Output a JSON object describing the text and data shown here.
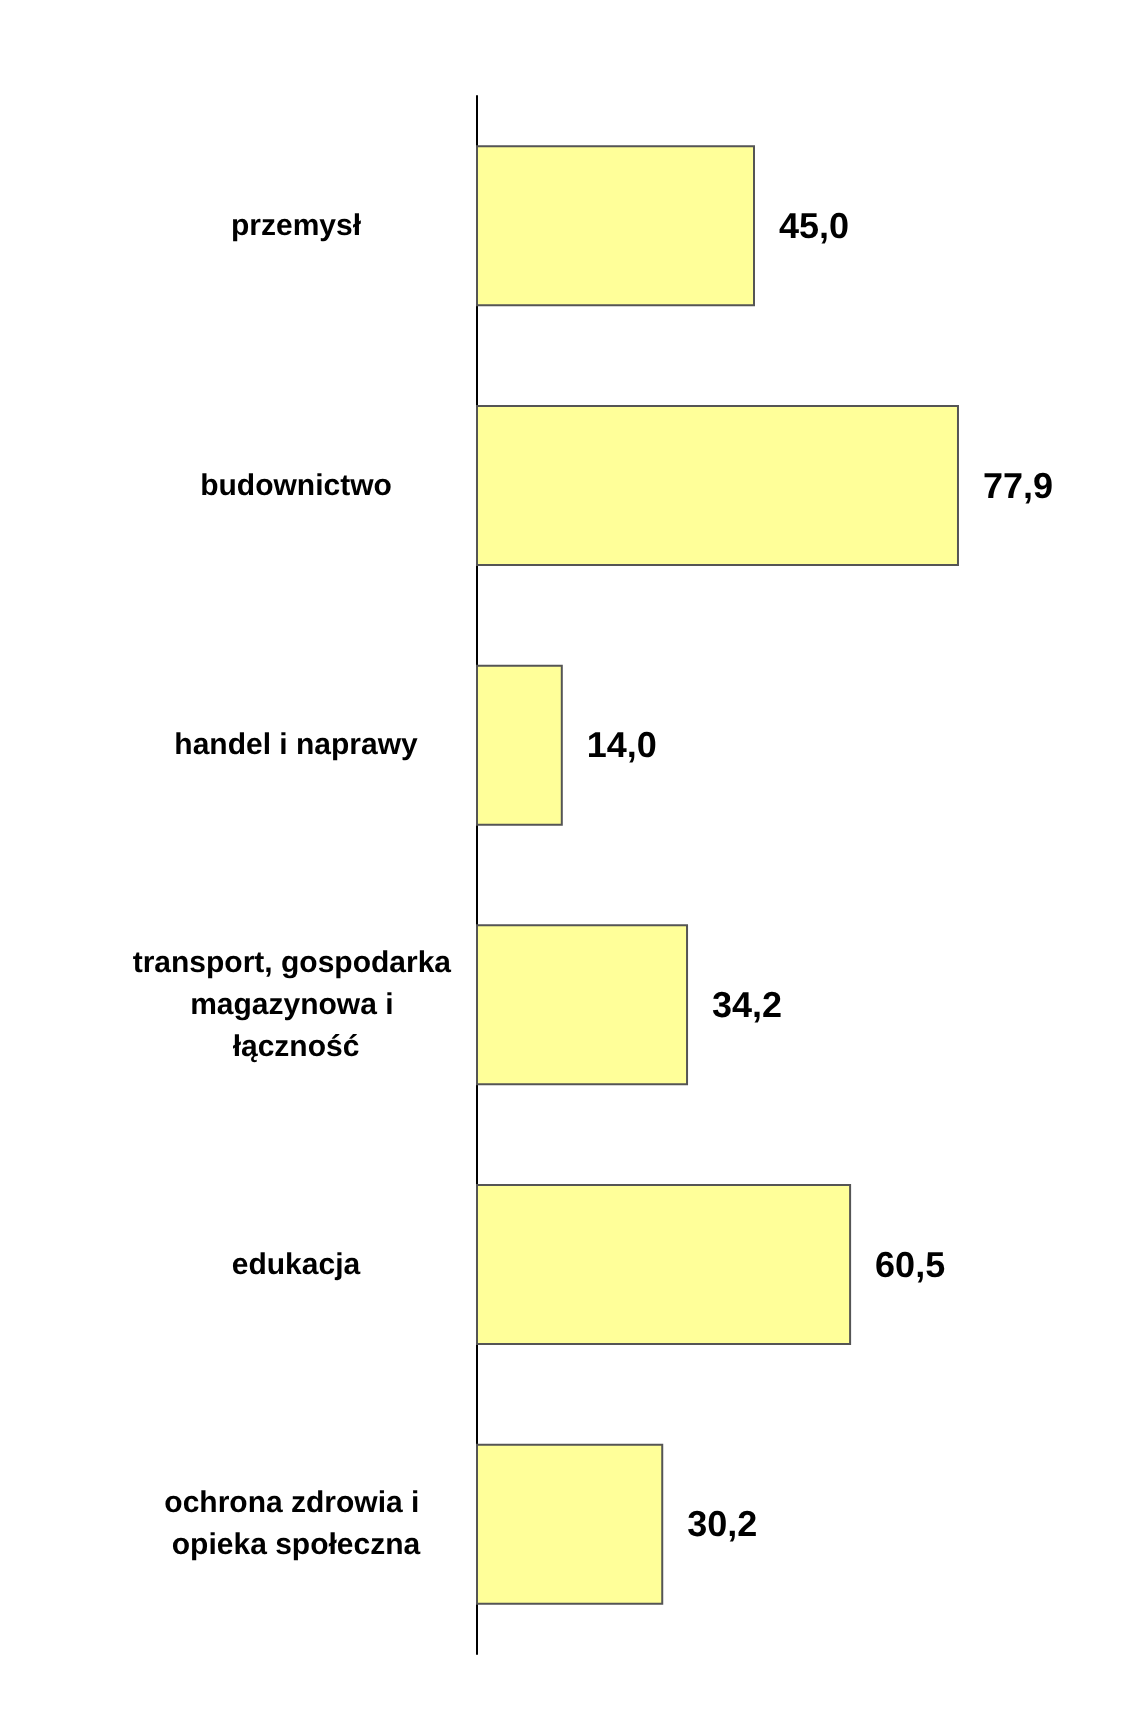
{
  "chart_data": {
    "type": "bar",
    "orientation": "horizontal",
    "categories": [
      "przemysł",
      "budownictwo",
      "handel i naprawy",
      "transport, gospodarka magazynowa i łączność",
      "edukacja",
      "ochrona zdrowia i opieka społeczna"
    ],
    "series": [
      {
        "color": "#ffff99",
        "values": [
          45.0,
          77.9,
          14.0,
          34.2,
          60.5,
          30.2
        ],
        "value_labels": [
          "45,0",
          "77,9",
          "14,0",
          "34,2",
          "60,5",
          "30,2"
        ]
      }
    ]
  }
}
